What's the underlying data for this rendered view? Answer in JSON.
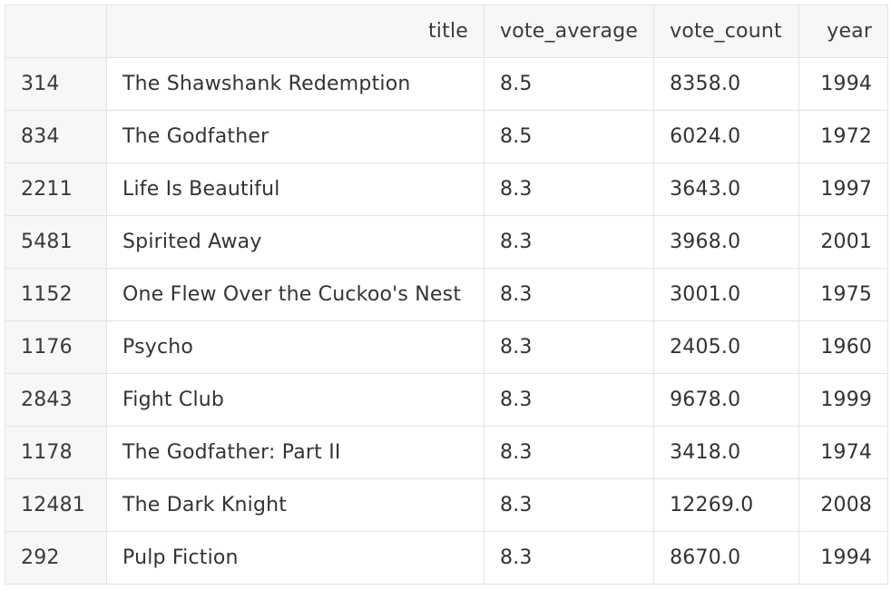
{
  "table": {
    "columns": [
      "",
      "title",
      "vote_average",
      "vote_count",
      "year"
    ],
    "rows": [
      {
        "index": "314",
        "title": "The Shawshank Redemption",
        "vote_average": "8.5",
        "vote_count": "8358.0",
        "year": "1994"
      },
      {
        "index": "834",
        "title": "The Godfather",
        "vote_average": "8.5",
        "vote_count": "6024.0",
        "year": "1972"
      },
      {
        "index": "2211",
        "title": "Life Is Beautiful",
        "vote_average": "8.3",
        "vote_count": "3643.0",
        "year": "1997"
      },
      {
        "index": "5481",
        "title": "Spirited Away",
        "vote_average": "8.3",
        "vote_count": "3968.0",
        "year": "2001"
      },
      {
        "index": "1152",
        "title": "One Flew Over the Cuckoo's Nest",
        "vote_average": "8.3",
        "vote_count": "3001.0",
        "year": "1975"
      },
      {
        "index": "1176",
        "title": "Psycho",
        "vote_average": "8.3",
        "vote_count": "2405.0",
        "year": "1960"
      },
      {
        "index": "2843",
        "title": "Fight Club",
        "vote_average": "8.3",
        "vote_count": "9678.0",
        "year": "1999"
      },
      {
        "index": "1178",
        "title": "The Godfather: Part II",
        "vote_average": "8.3",
        "vote_count": "3418.0",
        "year": "1974"
      },
      {
        "index": "12481",
        "title": "The Dark Knight",
        "vote_average": "8.3",
        "vote_count": "12269.0",
        "year": "2008"
      },
      {
        "index": "292",
        "title": "Pulp Fiction",
        "vote_average": "8.3",
        "vote_count": "8670.0",
        "year": "1994"
      }
    ]
  }
}
